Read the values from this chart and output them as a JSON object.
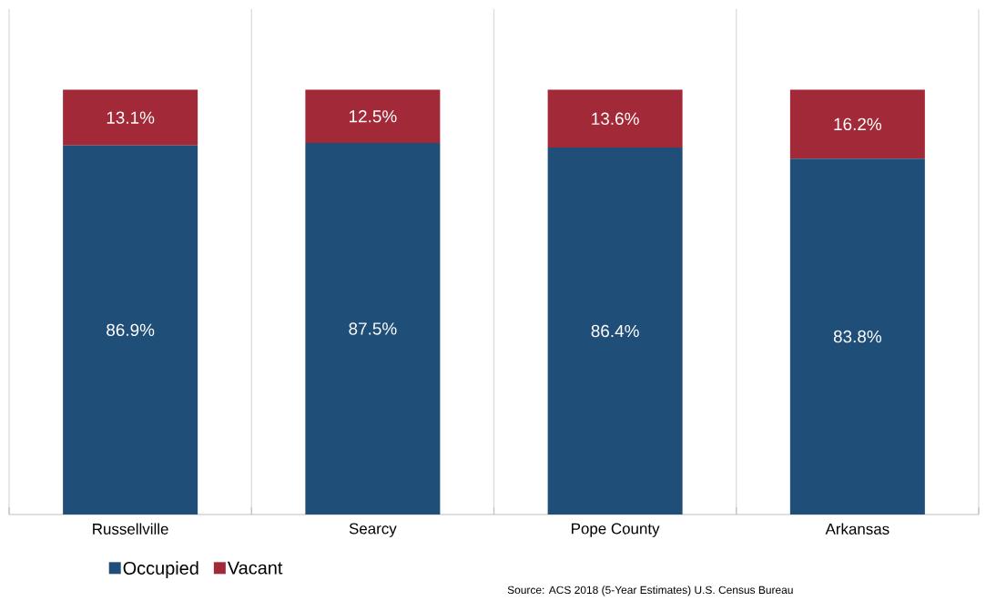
{
  "chart_data": {
    "type": "bar",
    "stacked": true,
    "categories": [
      "Russellville",
      "Searcy",
      "Pope County",
      "Arkansas"
    ],
    "series": [
      {
        "name": "Occupied",
        "color": "#1f4e79",
        "values": [
          86.9,
          87.5,
          86.4,
          83.8
        ],
        "value_labels": [
          "86.9%",
          "87.5%",
          "86.4%",
          "83.8%"
        ]
      },
      {
        "name": "Vacant",
        "color": "#a22a38",
        "values": [
          13.1,
          12.5,
          13.6,
          16.2
        ],
        "value_labels": [
          "13.1%",
          "12.5%",
          "13.6%",
          "16.2%"
        ]
      }
    ],
    "grid": "x",
    "legend": "bottom left",
    "annotations": [
      "Source: ACS 2018 (5-Year Estimates) U.S. Census Bureau"
    ]
  }
}
